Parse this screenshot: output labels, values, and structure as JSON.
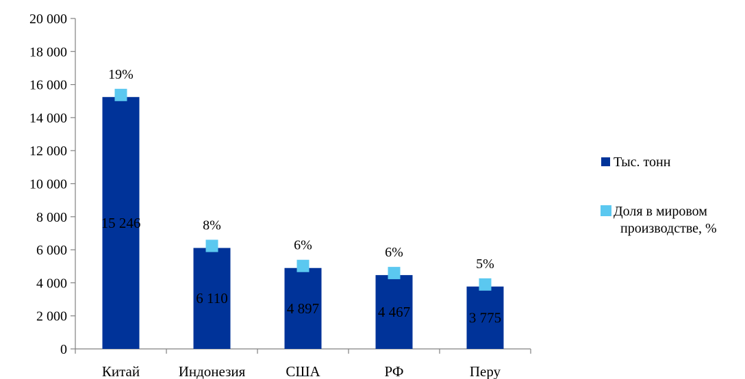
{
  "chart_data": {
    "type": "bar",
    "categories": [
      "Китай",
      "Индонезия",
      "США",
      "РФ",
      "Перу"
    ],
    "series": [
      {
        "name": "Тыс. тонн",
        "type": "bar",
        "color": "#003399",
        "values": [
          15246,
          6110,
          4897,
          4467,
          3775
        ],
        "labels": [
          "15 246",
          "6 110",
          "4 897",
          "4 467",
          "3 775"
        ]
      },
      {
        "name": "Доля в мировом производстве, %",
        "type": "marker",
        "color": "#5bc8f0",
        "values": [
          19,
          8,
          6,
          6,
          5
        ],
        "labels": [
          "19%",
          "8%",
          "6%",
          "6%",
          "5%"
        ]
      }
    ],
    "ylim": [
      0,
      20000
    ],
    "yticks": [
      0,
      2000,
      4000,
      6000,
      8000,
      10000,
      12000,
      14000,
      16000,
      18000,
      20000
    ],
    "ytick_labels": [
      "0",
      "2 000",
      "4 000",
      "6 000",
      "8 000",
      "10 000",
      "12 000",
      "14 000",
      "16 000",
      "18 000",
      "20 000"
    ],
    "grid": false,
    "legend": {
      "position": "right",
      "entries": [
        {
          "label": "Тыс. тонн",
          "lines": [
            "Тыс. тонн"
          ]
        },
        {
          "label": "Доля в мировом производстве, %",
          "lines": [
            "Доля в мировом",
            "производстве, %"
          ]
        }
      ]
    }
  }
}
